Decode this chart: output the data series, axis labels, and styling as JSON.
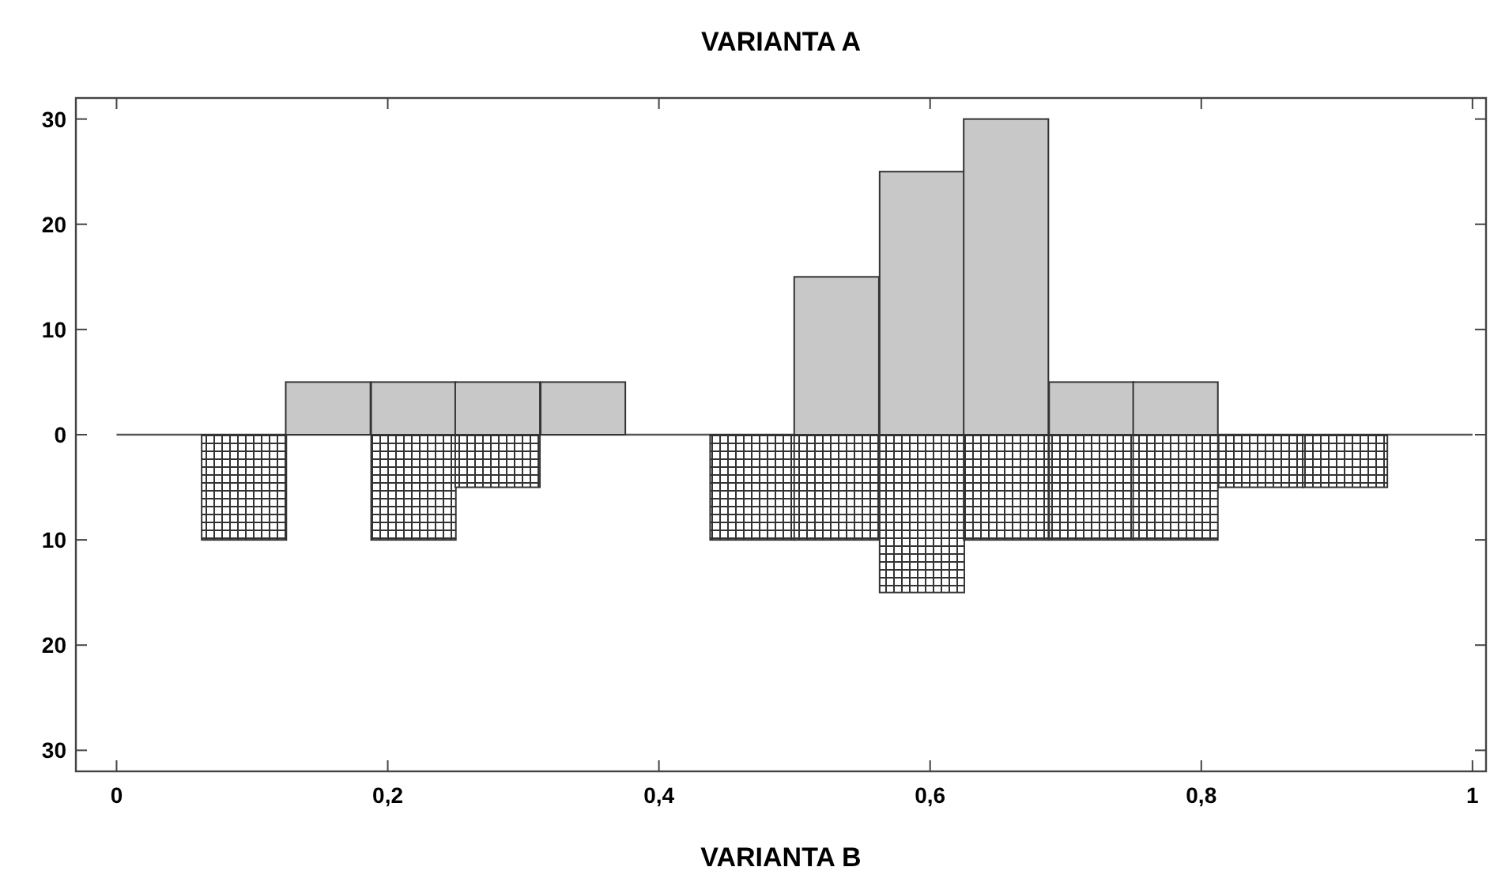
{
  "chart_data": {
    "type": "bar",
    "title": "VARIANTA A",
    "xlabel": "VARIANTA B",
    "x": [
      0.094,
      0.156,
      0.219,
      0.281,
      0.344,
      0.406,
      0.469,
      0.531,
      0.594,
      0.656,
      0.719,
      0.781,
      0.844,
      0.906
    ],
    "series": [
      {
        "color": "#c8c8c8",
        "values": [
          null,
          5,
          5,
          5,
          5,
          null,
          null,
          15,
          25,
          30,
          5,
          5,
          null,
          null
        ]
      },
      {
        "color": "#333333",
        "values": [
          -10,
          null,
          -10,
          -5,
          null,
          null,
          -10,
          -10,
          -15,
          -10,
          -10,
          -10,
          -5,
          -5
        ]
      }
    ],
    "xlim": [
      -0.03,
      1.01
    ],
    "xticks": [
      0,
      {
        "value": 0.2,
        "label": "0,2"
      },
      {
        "value": 0.4,
        "label": "0,4"
      },
      {
        "value": 0.6,
        "label": "0,6"
      },
      {
        "value": 0.8,
        "label": "0,8"
      },
      1
    ],
    "ylim": [
      -32,
      32
    ],
    "yticks": [
      30,
      20,
      10,
      0,
      {
        "value": -10,
        "label": "10"
      },
      {
        "value": -20,
        "label": "20"
      },
      {
        "value": -30,
        "label": "30"
      }
    ],
    "ref_lines": [
      {
        "axis": "y",
        "value": 0,
        "color": "#555555"
      }
    ],
    "stacked": true,
    "grid": false
  }
}
